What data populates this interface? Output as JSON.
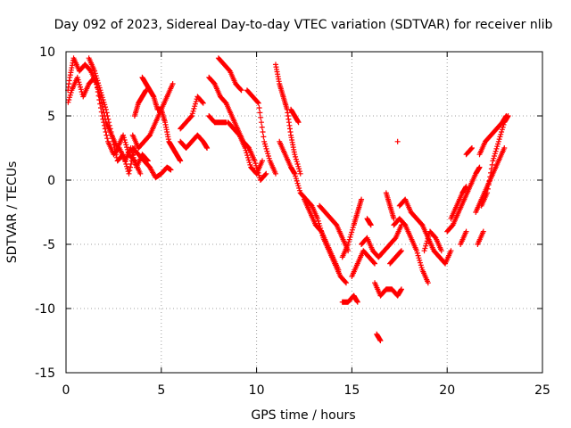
{
  "chart_data": {
    "type": "scatter",
    "title": "Day 092 of 2023, Sidereal Day-to-day VTEC variation (SDTVAR) for receiver nlib",
    "xlabel": "GPS time / hours",
    "ylabel": "SDTVAR / TECUs",
    "xlim": [
      0,
      25
    ],
    "ylim": [
      -15,
      10
    ],
    "xticks": [
      0,
      5,
      10,
      15,
      20,
      25
    ],
    "yticks": [
      10,
      5,
      0,
      -5,
      -10,
      -15
    ],
    "grid": true,
    "marker": "+",
    "color": "#ff0000",
    "series": [
      {
        "name": "SDTVAR",
        "tracks": [
          [
            [
              0.0,
              6.0
            ],
            [
              0.2,
              8.0
            ],
            [
              0.4,
              9.5
            ],
            [
              0.7,
              8.5
            ],
            [
              1.0,
              9.0
            ],
            [
              1.3,
              8.5
            ],
            [
              1.6,
              7.5
            ],
            [
              1.9,
              5.0
            ],
            [
              2.2,
              3.0
            ],
            [
              2.5,
              2.0
            ],
            [
              2.8,
              2.5
            ],
            [
              3.1,
              1.5
            ],
            [
              3.4,
              2.5
            ],
            [
              3.7,
              1.0
            ],
            [
              4.0,
              2.0
            ],
            [
              4.3,
              1.5
            ]
          ],
          [
            [
              0.0,
              5.5
            ],
            [
              0.3,
              7.0
            ],
            [
              0.6,
              8.0
            ],
            [
              0.9,
              6.5
            ],
            [
              1.2,
              7.5
            ],
            [
              1.5,
              8.0
            ],
            [
              1.8,
              6.5
            ],
            [
              2.1,
              4.5
            ],
            [
              2.4,
              3.5
            ],
            [
              2.7,
              1.5
            ],
            [
              3.0,
              2.0
            ],
            [
              3.3,
              0.5
            ],
            [
              3.6,
              2.5
            ]
          ],
          [
            [
              1.2,
              9.5
            ],
            [
              1.5,
              8.5
            ],
            [
              1.8,
              7.0
            ],
            [
              2.1,
              5.5
            ],
            [
              2.4,
              3.5
            ],
            [
              2.7,
              2.5
            ],
            [
              3.0,
              3.5
            ],
            [
              3.3,
              2.0
            ],
            [
              3.6,
              1.5
            ],
            [
              3.9,
              0.5
            ]
          ],
          [
            [
              3.5,
              2.5
            ],
            [
              3.8,
              2.0
            ],
            [
              4.1,
              1.5
            ],
            [
              4.4,
              1.0
            ],
            [
              4.7,
              0.2
            ],
            [
              5.0,
              0.5
            ],
            [
              5.3,
              1.0
            ],
            [
              5.5,
              0.8
            ]
          ],
          [
            [
              4.0,
              8.0
            ],
            [
              4.2,
              7.5
            ],
            [
              4.4,
              7.0
            ],
            [
              4.6,
              6.5
            ],
            [
              4.8,
              5.5
            ],
            [
              5.0,
              5.5
            ],
            [
              5.2,
              4.5
            ],
            [
              5.4,
              3.0
            ],
            [
              5.6,
              2.5
            ],
            [
              5.8,
              2.0
            ],
            [
              6.0,
              1.5
            ]
          ],
          [
            [
              3.5,
              3.5
            ],
            [
              3.8,
              2.5
            ],
            [
              4.1,
              3.0
            ],
            [
              4.4,
              3.5
            ],
            [
              4.7,
              4.5
            ],
            [
              5.0,
              5.5
            ],
            [
              5.3,
              6.5
            ],
            [
              5.6,
              7.5
            ]
          ],
          [
            [
              3.6,
              5.0
            ],
            [
              3.8,
              6.0
            ],
            [
              4.0,
              6.5
            ],
            [
              4.2,
              7.0
            ]
          ],
          [
            [
              6.0,
              3.0
            ],
            [
              6.3,
              2.5
            ],
            [
              6.6,
              3.0
            ],
            [
              6.9,
              3.5
            ],
            [
              7.2,
              3.0
            ],
            [
              7.4,
              2.5
            ]
          ],
          [
            [
              6.0,
              4.0
            ],
            [
              6.3,
              4.5
            ],
            [
              6.6,
              5.0
            ],
            [
              6.9,
              6.5
            ],
            [
              7.2,
              6.0
            ]
          ],
          [
            [
              7.5,
              8.0
            ],
            [
              7.8,
              7.5
            ],
            [
              8.1,
              6.5
            ],
            [
              8.4,
              6.0
            ],
            [
              8.7,
              5.0
            ],
            [
              9.0,
              4.0
            ],
            [
              9.3,
              3.0
            ],
            [
              9.6,
              2.5
            ],
            [
              9.9,
              1.5
            ],
            [
              10.2,
              0.0
            ],
            [
              10.5,
              0.5
            ]
          ],
          [
            [
              8.0,
              9.5
            ],
            [
              8.3,
              9.0
            ],
            [
              8.6,
              8.5
            ],
            [
              8.9,
              7.5
            ],
            [
              9.2,
              7.0
            ]
          ],
          [
            [
              7.5,
              5.0
            ],
            [
              7.8,
              4.5
            ],
            [
              8.1,
              4.5
            ],
            [
              8.4,
              4.5
            ]
          ],
          [
            [
              8.5,
              4.5
            ],
            [
              8.8,
              4.0
            ],
            [
              9.1,
              3.5
            ],
            [
              9.4,
              2.5
            ],
            [
              9.7,
              1.0
            ],
            [
              10.0,
              0.5
            ],
            [
              10.3,
              1.5
            ]
          ],
          [
            [
              9.5,
              7.0
            ],
            [
              9.8,
              6.5
            ],
            [
              10.1,
              6.0
            ],
            [
              10.4,
              3.0
            ],
            [
              10.7,
              1.5
            ],
            [
              11.0,
              0.5
            ]
          ],
          [
            [
              11.0,
              9.0
            ],
            [
              11.2,
              7.5
            ],
            [
              11.4,
              6.5
            ],
            [
              11.6,
              5.5
            ],
            [
              11.8,
              3.5
            ],
            [
              12.0,
              2.0
            ],
            [
              12.3,
              0.5
            ]
          ],
          [
            [
              11.2,
              3.0
            ],
            [
              11.5,
              2.0
            ],
            [
              11.8,
              1.0
            ],
            [
              12.0,
              0.5
            ]
          ],
          [
            [
              11.8,
              5.5
            ],
            [
              12.0,
              5.0
            ],
            [
              12.2,
              4.5
            ]
          ],
          [
            [
              12.0,
              0.5
            ],
            [
              12.3,
              -1.0
            ],
            [
              12.6,
              -1.5
            ],
            [
              12.9,
              -2.0
            ],
            [
              13.2,
              -3.0
            ],
            [
              13.5,
              -4.5
            ],
            [
              13.8,
              -5.5
            ],
            [
              14.1,
              -6.5
            ],
            [
              14.4,
              -7.5
            ],
            [
              14.7,
              -8.0
            ]
          ],
          [
            [
              12.5,
              -1.5
            ],
            [
              12.8,
              -2.5
            ],
            [
              13.1,
              -3.5
            ],
            [
              13.4,
              -4.0
            ],
            [
              13.7,
              -5.0
            ],
            [
              14.0,
              -6.0
            ],
            [
              14.3,
              -7.0
            ]
          ],
          [
            [
              13.3,
              -2.0
            ],
            [
              13.6,
              -2.5
            ],
            [
              13.9,
              -3.0
            ],
            [
              14.2,
              -3.5
            ],
            [
              14.5,
              -4.5
            ],
            [
              14.8,
              -5.5
            ]
          ],
          [
            [
              14.5,
              -9.5
            ],
            [
              14.8,
              -9.5
            ],
            [
              15.1,
              -9.0
            ],
            [
              15.3,
              -9.5
            ]
          ],
          [
            [
              14.5,
              -6.0
            ],
            [
              14.8,
              -5.0
            ],
            [
              15.1,
              -3.5
            ],
            [
              15.3,
              -2.5
            ],
            [
              15.5,
              -1.5
            ]
          ],
          [
            [
              15.0,
              -7.5
            ],
            [
              15.3,
              -6.5
            ],
            [
              15.6,
              -5.5
            ],
            [
              15.9,
              -6.0
            ],
            [
              16.2,
              -6.5
            ]
          ],
          [
            [
              15.8,
              -3.0
            ],
            [
              16.0,
              -3.5
            ]
          ],
          [
            [
              15.5,
              -5.0
            ],
            [
              15.8,
              -4.5
            ],
            [
              16.1,
              -5.5
            ],
            [
              16.4,
              -6.0
            ],
            [
              16.7,
              -5.5
            ],
            [
              17.0,
              -5.0
            ],
            [
              17.3,
              -4.5
            ],
            [
              17.6,
              -3.5
            ]
          ],
          [
            [
              16.2,
              -8.0
            ],
            [
              16.5,
              -9.0
            ],
            [
              16.8,
              -8.5
            ],
            [
              17.1,
              -8.5
            ],
            [
              17.4,
              -9.0
            ],
            [
              17.6,
              -8.5
            ]
          ],
          [
            [
              16.3,
              -12.0
            ],
            [
              16.5,
              -12.5
            ]
          ],
          [
            [
              16.8,
              -1.0
            ],
            [
              17.0,
              -2.0
            ],
            [
              17.2,
              -3.0
            ]
          ],
          [
            [
              17.2,
              -3.5
            ],
            [
              17.5,
              -3.0
            ],
            [
              17.8,
              -3.5
            ],
            [
              18.1,
              -4.5
            ],
            [
              18.4,
              -5.5
            ],
            [
              18.7,
              -7.0
            ],
            [
              19.0,
              -8.0
            ]
          ],
          [
            [
              17.5,
              -2.0
            ],
            [
              17.8,
              -1.5
            ],
            [
              18.1,
              -2.5
            ],
            [
              18.4,
              -3.0
            ],
            [
              18.7,
              -3.5
            ],
            [
              19.0,
              -4.5
            ],
            [
              19.3,
              -5.5
            ],
            [
              19.6,
              -6.0
            ],
            [
              19.9,
              -6.5
            ],
            [
              20.2,
              -5.5
            ]
          ],
          [
            [
              17.0,
              -6.5
            ],
            [
              17.3,
              -6.0
            ],
            [
              17.6,
              -5.5
            ]
          ],
          [
            [
              18.8,
              -5.5
            ],
            [
              19.1,
              -4.0
            ],
            [
              19.4,
              -4.5
            ],
            [
              19.7,
              -5.5
            ]
          ],
          [
            [
              17.4,
              3.0
            ]
          ],
          [
            [
              20.0,
              -4.0
            ],
            [
              20.3,
              -3.5
            ],
            [
              20.6,
              -2.5
            ],
            [
              20.9,
              -1.5
            ],
            [
              21.2,
              -0.5
            ],
            [
              21.5,
              0.5
            ],
            [
              21.7,
              1.0
            ]
          ],
          [
            [
              20.2,
              -3.0
            ],
            [
              20.5,
              -2.0
            ],
            [
              20.8,
              -1.0
            ],
            [
              21.0,
              -0.5
            ]
          ],
          [
            [
              20.7,
              -5.0
            ],
            [
              21.0,
              -4.0
            ]
          ],
          [
            [
              21.0,
              2.0
            ],
            [
              21.3,
              2.5
            ]
          ],
          [
            [
              21.5,
              -2.5
            ],
            [
              21.8,
              -1.5
            ],
            [
              22.1,
              -0.5
            ],
            [
              22.4,
              0.5
            ],
            [
              22.7,
              1.5
            ],
            [
              23.0,
              2.5
            ]
          ],
          [
            [
              21.8,
              -2.0
            ],
            [
              22.1,
              -1.0
            ],
            [
              22.4,
              1.5
            ],
            [
              22.7,
              3.0
            ],
            [
              23.0,
              4.5
            ],
            [
              23.2,
              5.0
            ]
          ],
          [
            [
              21.7,
              2.0
            ],
            [
              22.0,
              3.0
            ],
            [
              22.3,
              3.5
            ],
            [
              22.6,
              4.0
            ],
            [
              22.9,
              4.5
            ],
            [
              23.1,
              5.0
            ]
          ],
          [
            [
              21.6,
              -5.0
            ],
            [
              21.9,
              -4.0
            ]
          ]
        ]
      }
    ]
  }
}
